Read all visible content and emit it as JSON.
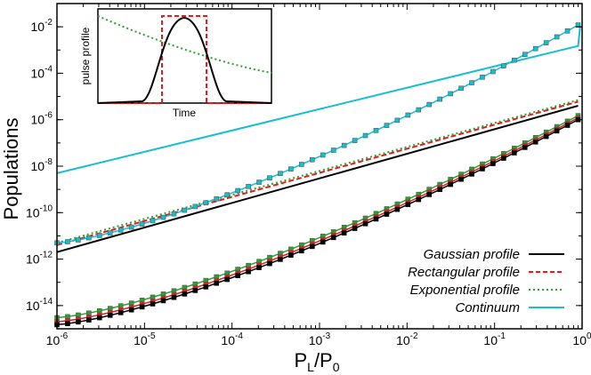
{
  "chart_data": {
    "type": "line",
    "title": "",
    "xlabel": "P",
    "xlabel_sub_1": "L",
    "xlabel_mid": "/P",
    "xlabel_sub_2": "0",
    "ylabel": "Populations",
    "xscale": "log",
    "yscale": "log",
    "xlim": [
      1e-06,
      1
    ],
    "ylim": [
      1e-15,
      0.1
    ],
    "x_ticks": [
      {
        "mant": "10",
        "exp": "-6"
      },
      {
        "mant": "10",
        "exp": "-5"
      },
      {
        "mant": "10",
        "exp": "-4"
      },
      {
        "mant": "10",
        "exp": "-3"
      },
      {
        "mant": "10",
        "exp": "-2"
      },
      {
        "mant": "10",
        "exp": "-1"
      },
      {
        "mant": "10",
        "exp": "0"
      }
    ],
    "y_ticks": [
      {
        "mant": "10",
        "exp": "-14"
      },
      {
        "mant": "10",
        "exp": "-12"
      },
      {
        "mant": "10",
        "exp": "-10"
      },
      {
        "mant": "10",
        "exp": "-8"
      },
      {
        "mant": "10",
        "exp": "-6"
      },
      {
        "mant": "10",
        "exp": "-4"
      },
      {
        "mant": "10",
        "exp": "-2"
      }
    ],
    "legend_position": "bottom-right",
    "series": [
      {
        "name": "Gaussian profile",
        "color": "#000000",
        "dash": "solid",
        "x": [
          1e-06,
          0.9
        ],
        "y": [
          2e-12,
          4e-06
        ]
      },
      {
        "name": "Rectangular profile",
        "color": "#e41a1c",
        "dash": "dashed",
        "x": [
          1e-06,
          0.9
        ],
        "y": [
          4e-12,
          6e-06
        ]
      },
      {
        "name": "Exponential profile",
        "color": "#2ca02c",
        "dash": "dotted",
        "x": [
          1e-06,
          0.9
        ],
        "y": [
          5e-12,
          7e-06
        ]
      },
      {
        "name": "Continuum",
        "color": "#17becf",
        "dash": "solid",
        "x": [
          1e-06,
          0.9,
          0.95
        ],
        "y": [
          5e-09,
          0.0015,
          0.01
        ]
      }
    ],
    "marked_series": [
      {
        "name": "Continuum (markers)",
        "color": "#17becf",
        "y_at_1e-6": 5e-12,
        "y_at_0.9": 0.012
      },
      {
        "name": "Exponential (markers)",
        "color": "#2ca02c",
        "y_at_1e-6": 3e-15,
        "y_at_0.9": 1.5e-06
      },
      {
        "name": "Rectangular (markers)",
        "color": "#e41a1c",
        "y_at_1e-6": 2e-15,
        "y_at_0.9": 1.2e-06
      },
      {
        "name": "Gaussian (markers)",
        "color": "#000000",
        "y_at_1e-6": 1.5e-15,
        "y_at_0.9": 1e-06
      }
    ],
    "marker_count": 50,
    "inset": {
      "ylabel": "pulse profile",
      "xlabel": "Time",
      "curves": [
        "Gaussian",
        "Rectangular",
        "Exponential"
      ]
    }
  }
}
